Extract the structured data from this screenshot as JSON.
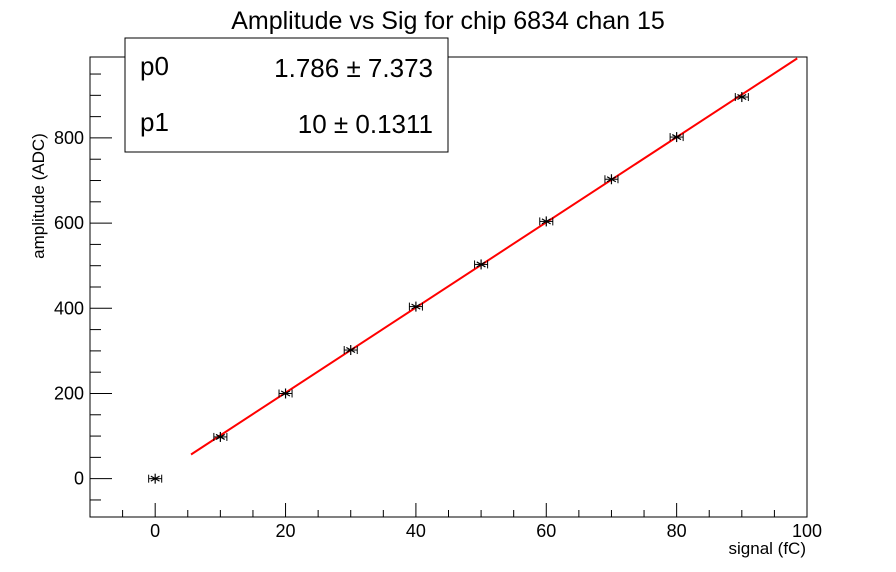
{
  "chart_data": {
    "type": "scatter",
    "title": "Amplitude vs Sig for chip 6834 chan 15",
    "xlabel": "signal (fC)",
    "ylabel": "amplitude (ADC)",
    "xlim": [
      -10,
      100
    ],
    "ylim": [
      -90,
      990
    ],
    "x_ticks": [
      0,
      20,
      40,
      60,
      80,
      100
    ],
    "y_ticks": [
      0,
      200,
      400,
      600,
      800
    ],
    "grid": false,
    "series": [
      {
        "marker": "star",
        "color": "#000000",
        "x": [
          0,
          10,
          20,
          30,
          40,
          50,
          60,
          70,
          80,
          90
        ],
        "y": [
          0,
          98,
          200,
          302,
          404,
          503,
          604,
          703,
          802,
          896
        ],
        "xerr": [
          1,
          1,
          1,
          1,
          1,
          1,
          1,
          1,
          1,
          1
        ]
      }
    ],
    "fit": {
      "color": "#ff0000",
      "x_range": [
        5.5,
        98.5
      ],
      "p0": 1.786,
      "p1": 10
    },
    "stats_box": {
      "position": "top-left",
      "rows": [
        {
          "name": "p0",
          "value": "1.786 ± 7.373"
        },
        {
          "name": "p1",
          "value": "10 ± 0.1311"
        }
      ]
    }
  }
}
